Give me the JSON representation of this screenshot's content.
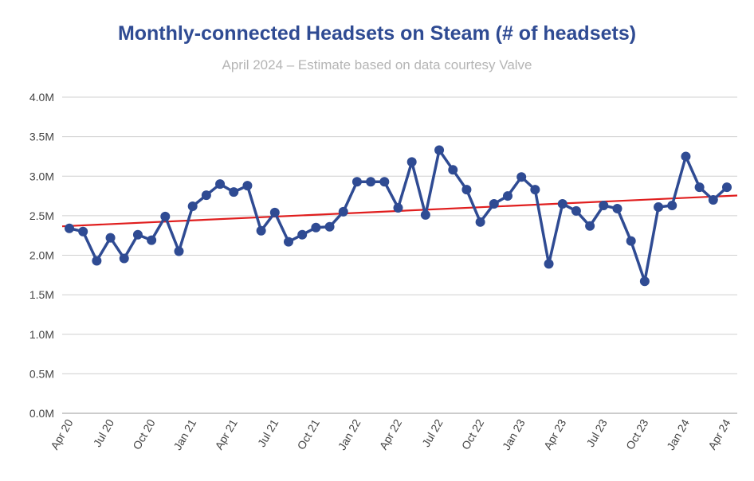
{
  "chart_data": {
    "type": "line",
    "title": "Monthly-connected Headsets on Steam (# of headsets)",
    "subtitle": "April 2024 – Estimate based on data courtesy Valve",
    "xlabel": "",
    "ylabel": "",
    "ylim": [
      0,
      4000000
    ],
    "yticks": [
      "0.0M",
      "0.5M",
      "1.0M",
      "1.5M",
      "2.0M",
      "2.5M",
      "3.0M",
      "3.5M",
      "4.0M"
    ],
    "grid": true,
    "x": [
      "Apr 20",
      "May 20",
      "Jun 20",
      "Jul 20",
      "Aug 20",
      "Sep 20",
      "Oct 20",
      "Nov 20",
      "Dec 20",
      "Jan 21",
      "Feb 21",
      "Mar 21",
      "Apr 21",
      "May 21",
      "Jun 21",
      "Jul 21",
      "Aug 21",
      "Sep 21",
      "Oct 21",
      "Nov 21",
      "Dec 21",
      "Jan 22",
      "Feb 22",
      "Mar 22",
      "Apr 22",
      "May 22",
      "Jun 22",
      "Jul 22",
      "Aug 22",
      "Sep 22",
      "Oct 22",
      "Nov 22",
      "Dec 22",
      "Jan 23",
      "Feb 23",
      "Mar 23",
      "Apr 23",
      "May 23",
      "Jun 23",
      "Jul 23",
      "Aug 23",
      "Sep 23",
      "Oct 23",
      "Nov 23",
      "Dec 23",
      "Jan 24",
      "Feb 24",
      "Mar 24",
      "Apr 24"
    ],
    "xticks": [
      "Apr 20",
      "Jul 20",
      "Oct 20",
      "Jan 21",
      "Apr 21",
      "Jul 21",
      "Oct 21",
      "Jan 22",
      "Apr 22",
      "Jul 22",
      "Oct 22",
      "Jan 23",
      "Apr 23",
      "Jul 23",
      "Oct 23",
      "Jan 24",
      "Apr 24"
    ],
    "series": [
      {
        "color": "#2f4b93",
        "values": [
          2340000,
          2300000,
          1930000,
          2220000,
          1960000,
          2260000,
          2190000,
          2490000,
          2050000,
          2620000,
          2760000,
          2900000,
          2800000,
          2880000,
          2310000,
          2540000,
          2170000,
          2260000,
          2350000,
          2360000,
          2550000,
          2930000,
          2930000,
          2930000,
          2600000,
          3180000,
          2510000,
          3330000,
          3080000,
          2830000,
          2420000,
          2650000,
          2750000,
          2990000,
          2830000,
          1890000,
          2650000,
          2560000,
          2370000,
          2630000,
          2590000,
          2180000,
          1670000,
          2610000,
          2630000,
          3250000,
          2860000,
          2700000,
          2860000
        ]
      }
    ],
    "trendline": {
      "color": "#e01e1e",
      "start": 2370000,
      "end": 2750000
    }
  }
}
